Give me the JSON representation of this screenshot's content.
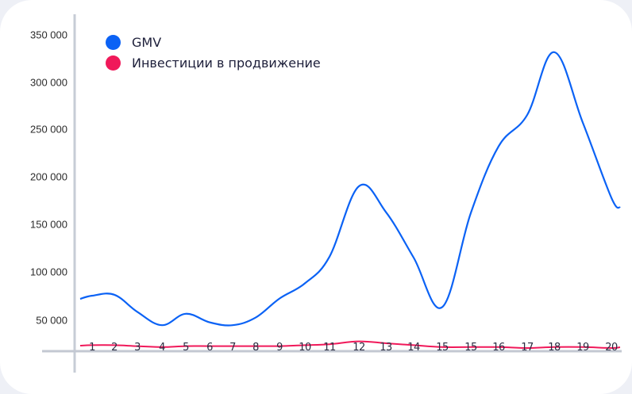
{
  "chart_data": {
    "type": "line",
    "title": "",
    "xlabel": "",
    "ylabel": "",
    "categories": [
      "1",
      "2",
      "3",
      "4",
      "5",
      "6",
      "7",
      "8",
      "9",
      "10",
      "11",
      "12",
      "13",
      "14",
      "15",
      "15",
      "16",
      "17",
      "18",
      "19",
      "20"
    ],
    "series": [
      {
        "name": "GMV",
        "color": "#0b62f5",
        "values": [
          75000,
          76000,
          58000,
          44000,
          56000,
          47000,
          44000,
          52000,
          72000,
          88000,
          116000,
          190000,
          163000,
          115000,
          63000,
          162000,
          232000,
          265000,
          331000,
          257000,
          178000
        ]
      },
      {
        "name": "Инвестиции в продвижение",
        "color": "#f0195a",
        "values": [
          23000,
          23000,
          22000,
          21000,
          22000,
          22000,
          22000,
          22000,
          22000,
          23000,
          24000,
          27000,
          25000,
          23000,
          21000,
          21000,
          21000,
          20000,
          21000,
          21000,
          20000
        ]
      }
    ],
    "yticks": [
      "350 000",
      "300 000",
      "250 000",
      "200 000",
      "150 000",
      "100 000",
      "50 000"
    ],
    "ylim": [
      17000,
      360000
    ],
    "grid": false,
    "legend_position": "top-left"
  },
  "legend": {
    "items": [
      {
        "label": "GMV",
        "color": "#0b62f5"
      },
      {
        "label": "Инвестиции в продвижение",
        "color": "#f0195a"
      }
    ]
  }
}
